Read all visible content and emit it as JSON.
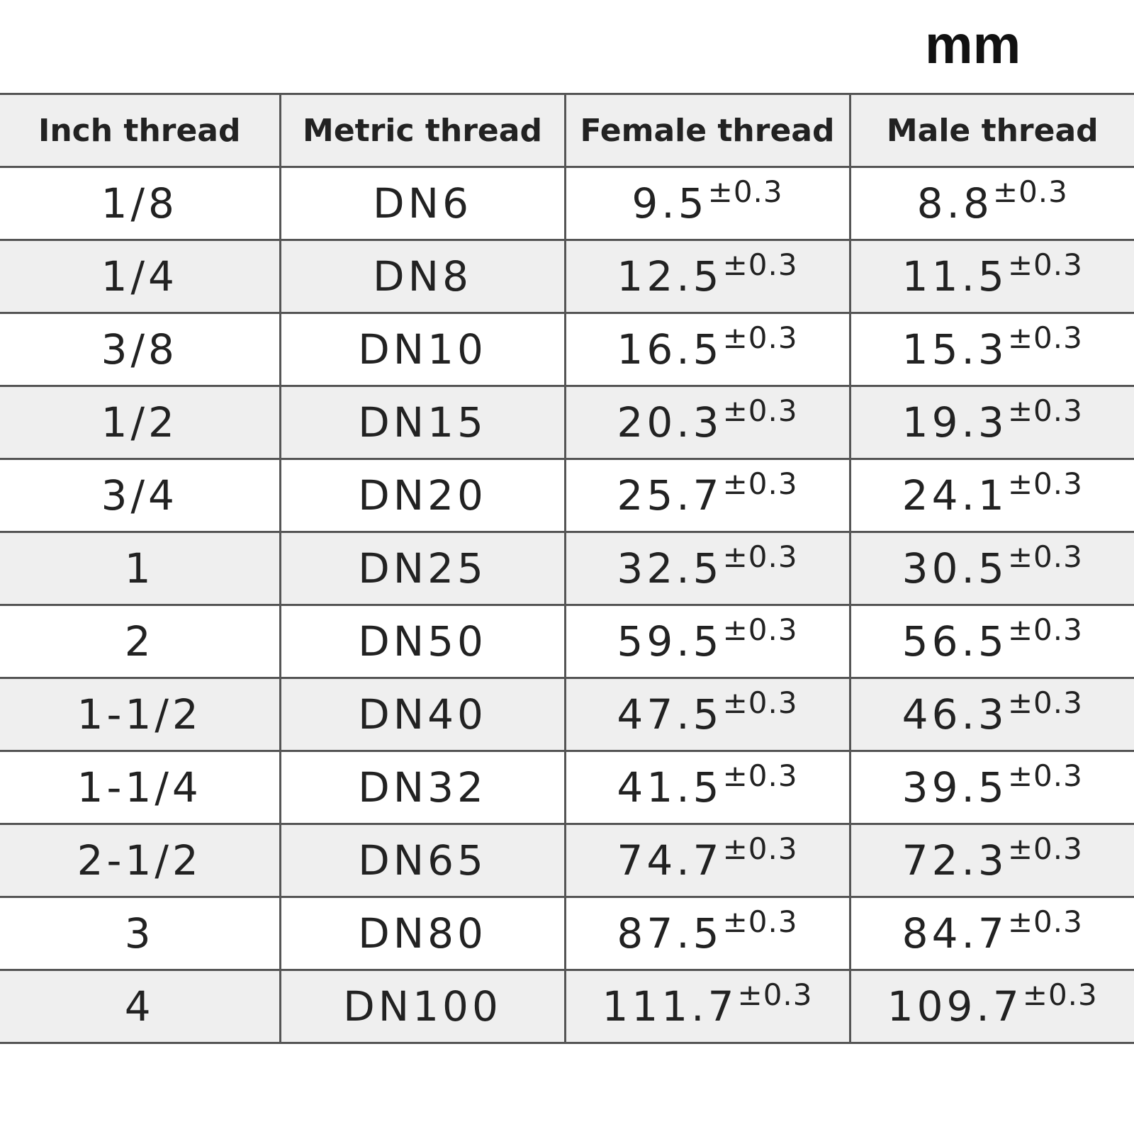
{
  "unit": "mm",
  "table": {
    "header": [
      "Inch thread",
      "Metric thread",
      "Female thread",
      "Male thread"
    ],
    "rows": [
      [
        "1/8",
        "DN6",
        {
          "value": "9.5",
          "tolerance": "±0.3"
        },
        {
          "value": "8.8",
          "tolerance": "±0.3"
        }
      ],
      [
        "1/4",
        "DN8",
        {
          "value": "12.5",
          "tolerance": "±0.3"
        },
        {
          "value": "11.5",
          "tolerance": "±0.3"
        }
      ],
      [
        "3/8",
        "DN10",
        {
          "value": "16.5",
          "tolerance": "±0.3"
        },
        {
          "value": "15.3",
          "tolerance": "±0.3"
        }
      ],
      [
        "1/2",
        "DN15",
        {
          "value": "20.3",
          "tolerance": "±0.3"
        },
        {
          "value": "19.3",
          "tolerance": "±0.3"
        }
      ],
      [
        "3/4",
        "DN20",
        {
          "value": "25.7",
          "tolerance": "±0.3"
        },
        {
          "value": "24.1",
          "tolerance": "±0.3"
        }
      ],
      [
        "1",
        "DN25",
        {
          "value": "32.5",
          "tolerance": "±0.3"
        },
        {
          "value": "30.5",
          "tolerance": "±0.3"
        }
      ],
      [
        "2",
        "DN50",
        {
          "value": "59.5",
          "tolerance": "±0.3"
        },
        {
          "value": "56.5",
          "tolerance": "±0.3"
        }
      ],
      [
        "1-1/2",
        "DN40",
        {
          "value": "47.5",
          "tolerance": "±0.3"
        },
        {
          "value": "46.3",
          "tolerance": "±0.3"
        }
      ],
      [
        "1-1/4",
        "DN32",
        {
          "value": "41.5",
          "tolerance": "±0.3"
        },
        {
          "value": "39.5",
          "tolerance": "±0.3"
        }
      ],
      [
        "2-1/2",
        "DN65",
        {
          "value": "74.7",
          "tolerance": "±0.3"
        },
        {
          "value": "72.3",
          "tolerance": "±0.3"
        }
      ],
      [
        "3",
        "DN80",
        {
          "value": "87.5",
          "tolerance": "±0.3"
        },
        {
          "value": "84.7",
          "tolerance": "±0.3"
        }
      ],
      [
        "4",
        "DN100",
        {
          "value": "111.7",
          "tolerance": "±0.3"
        },
        {
          "value": "109.7",
          "tolerance": "±0.3"
        }
      ]
    ]
  }
}
